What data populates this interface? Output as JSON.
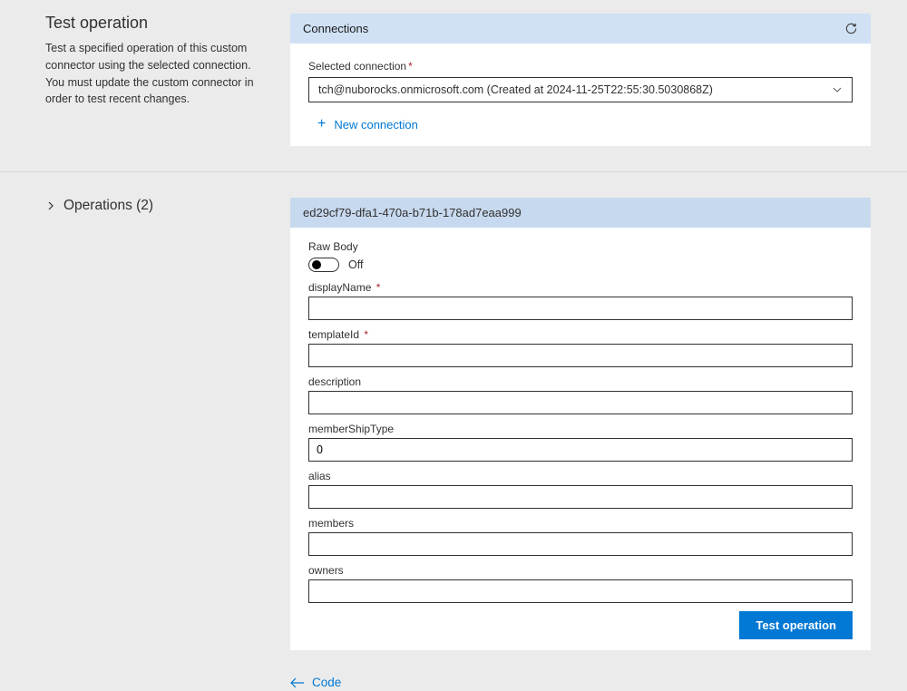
{
  "testOp": {
    "title": "Test operation",
    "description": "Test a specified operation of this custom connector using the selected connection. You must update the custom connector in order to test recent changes."
  },
  "connections": {
    "header": "Connections",
    "selectedLabel": "Selected connection",
    "selectedValue": "tch@nuborocks.onmicrosoft.com (Created at 2024-11-25T22:55:30.5030868Z)",
    "newConnection": "New connection"
  },
  "operations": {
    "headerLabel": "Operations (2)"
  },
  "operation": {
    "id": "ed29cf79-dfa1-470a-b71b-178ad7eaa999",
    "rawBodyLabel": "Raw Body",
    "rawBodyState": "Off",
    "fields": [
      {
        "key": "displayName",
        "label": "displayName",
        "required": true,
        "value": ""
      },
      {
        "key": "templateId",
        "label": "templateId",
        "required": true,
        "value": ""
      },
      {
        "key": "description",
        "label": "description",
        "required": false,
        "value": ""
      },
      {
        "key": "memberShipType",
        "label": "memberShipType",
        "required": false,
        "value": "0"
      },
      {
        "key": "alias",
        "label": "alias",
        "required": false,
        "value": ""
      },
      {
        "key": "members",
        "label": "members",
        "required": false,
        "value": ""
      },
      {
        "key": "owners",
        "label": "owners",
        "required": false,
        "value": ""
      }
    ],
    "testButton": "Test operation"
  },
  "codeLink": "Code",
  "colors": {
    "background": "#ebebeb",
    "panel": "#ffffff",
    "headerBlueLight": "#d0e1f5",
    "headerBlueMed": "#c7d9ee",
    "primaryBlue": "#0078d4",
    "text": "#323130",
    "requiredMark": "#a4262c",
    "divider": "#d6d6d6"
  }
}
